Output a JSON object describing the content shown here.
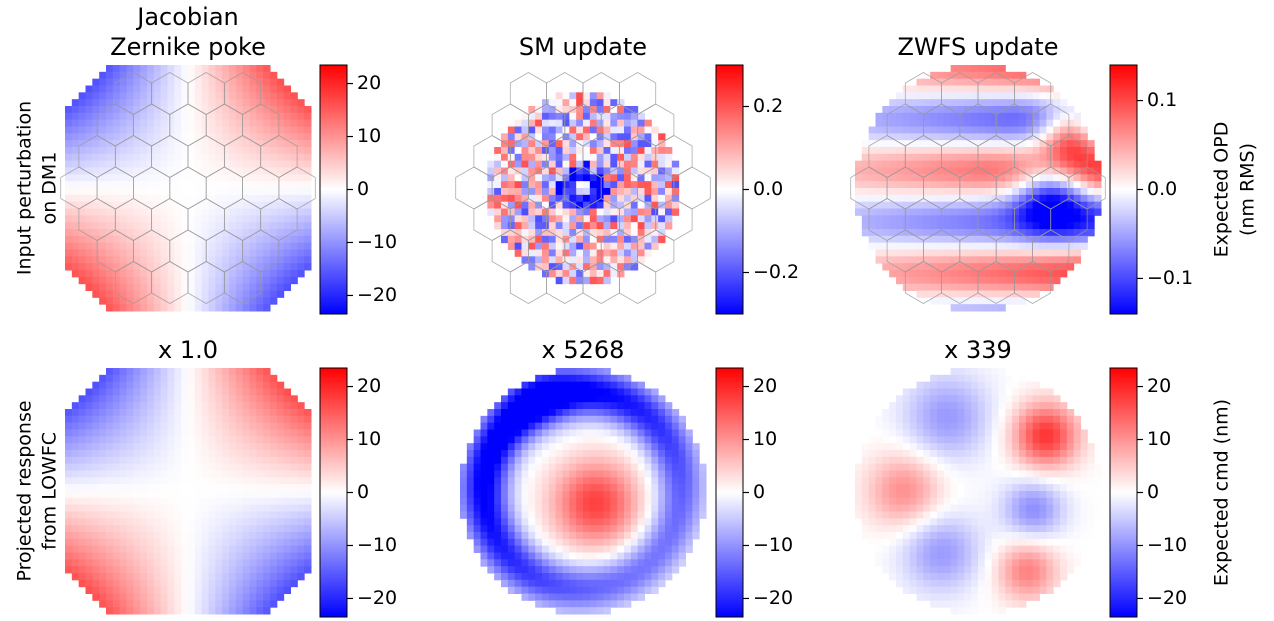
{
  "chart_data": [
    {
      "type": "heatmap",
      "title": [
        "Jacobian",
        "Zernike poke"
      ],
      "ylabel": [
        "Input perturbation",
        "on DM1"
      ],
      "clim": [
        -23.5,
        23.5
      ],
      "cticks": [
        {
          "value": -20,
          "label": "−20"
        },
        {
          "value": -10,
          "label": "−10"
        },
        0,
        10,
        20
      ]
    },
    {
      "type": "heatmap",
      "title": [
        "SM update"
      ],
      "clim": [
        -0.3,
        0.3
      ],
      "cticks": [
        {
          "value": -0.2,
          "label": "−0.2"
        },
        {
          "value": 0,
          "label": "0.0"
        },
        0.2
      ]
    },
    {
      "type": "heatmap",
      "title": [
        "ZWFS update"
      ],
      "clim": [
        -0.14,
        0.14
      ],
      "clabel": [
        "Expected OPD",
        "(nm RMS)"
      ],
      "cticks": [
        {
          "value": -0.1,
          "label": "−0.1"
        },
        {
          "value": 0,
          "label": "0.0"
        },
        0.1
      ]
    },
    {
      "type": "heatmap",
      "title": [
        "x 1.0"
      ],
      "ylabel": [
        "Projected response",
        "from LOWFC"
      ],
      "clim": [
        -23.5,
        23.5
      ],
      "cticks": [
        {
          "value": -20,
          "label": "−20"
        },
        {
          "value": -10,
          "label": "−10"
        },
        0,
        10,
        20
      ]
    },
    {
      "type": "heatmap",
      "title": [
        "x 5268"
      ],
      "clim": [
        -23.5,
        23.5
      ],
      "cticks": [
        {
          "value": -20,
          "label": "−20"
        },
        {
          "value": -10,
          "label": "−10"
        },
        0,
        10,
        20
      ]
    },
    {
      "type": "heatmap",
      "title": [
        "x 339"
      ],
      "clim": [
        -23.5,
        23.5
      ],
      "clabel": [
        "Expected cmd (nm)"
      ],
      "cticks": [
        {
          "value": -20,
          "label": "−20"
        },
        {
          "value": -10,
          "label": "−10"
        },
        0,
        10,
        20
      ]
    }
  ]
}
